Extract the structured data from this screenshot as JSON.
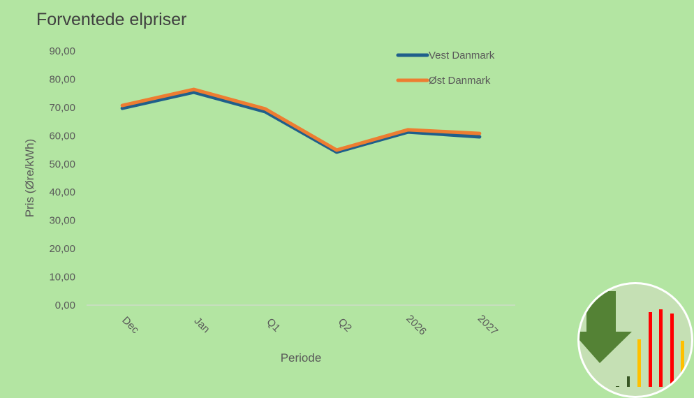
{
  "chart_data": {
    "type": "line",
    "title": "Forventede elpriser",
    "xlabel": "Periode",
    "ylabel": "Pris (Øre/kWh)",
    "ylim": [
      0,
      90
    ],
    "yticks": [
      "0,00",
      "10,00",
      "20,00",
      "30,00",
      "40,00",
      "50,00",
      "60,00",
      "70,00",
      "80,00",
      "90,00"
    ],
    "categories": [
      "Dec",
      "Jan",
      "Q1",
      "Q2",
      "2026",
      "2027"
    ],
    "grid": false,
    "legend": "top-right",
    "series": [
      {
        "name": "Vest Danmark",
        "color": "#1f5f8b",
        "values": [
          69.7,
          75.4,
          68.5,
          54.2,
          61.3,
          59.6
        ]
      },
      {
        "name": "Øst Danmark",
        "color": "#ed7d31",
        "values": [
          70.7,
          76.4,
          69.5,
          54.9,
          62.1,
          60.8
        ]
      }
    ]
  },
  "badge_icon": "price-down-bar-chart-icon"
}
